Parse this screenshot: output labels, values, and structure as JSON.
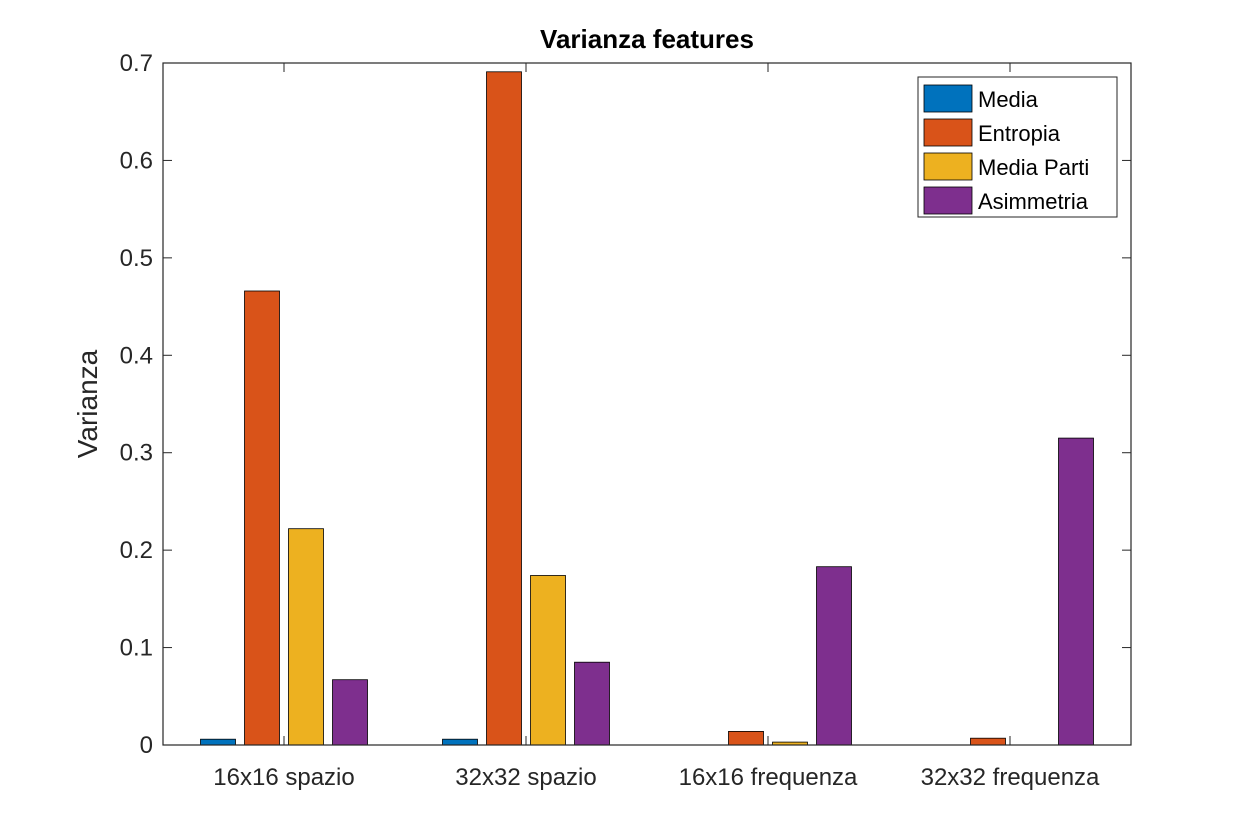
{
  "chart_data": {
    "type": "bar",
    "title": "Varianza features",
    "xlabel": "",
    "ylabel": "Varianza",
    "categories": [
      "16x16 spazio",
      "32x32 spazio",
      "16x16 frequenza",
      "32x32 frequenza"
    ],
    "series": [
      {
        "name": "Media",
        "color": "#0072BD",
        "values": [
          0.006,
          0.006,
          0.0,
          0.0
        ]
      },
      {
        "name": "Entropia",
        "color": "#D95319",
        "values": [
          0.466,
          0.691,
          0.014,
          0.007
        ]
      },
      {
        "name": "Media Parti",
        "color": "#EDB120",
        "values": [
          0.222,
          0.174,
          0.003,
          0.0
        ]
      },
      {
        "name": "Asimmetria",
        "color": "#7E2F8E",
        "values": [
          0.067,
          0.085,
          0.183,
          0.315
        ]
      }
    ],
    "ylim": [
      0,
      0.7
    ],
    "yticks": [
      "0",
      "0.1",
      "0.2",
      "0.3",
      "0.4",
      "0.5",
      "0.6",
      "0.7"
    ],
    "grid": false,
    "legend_position": "top-right"
  }
}
